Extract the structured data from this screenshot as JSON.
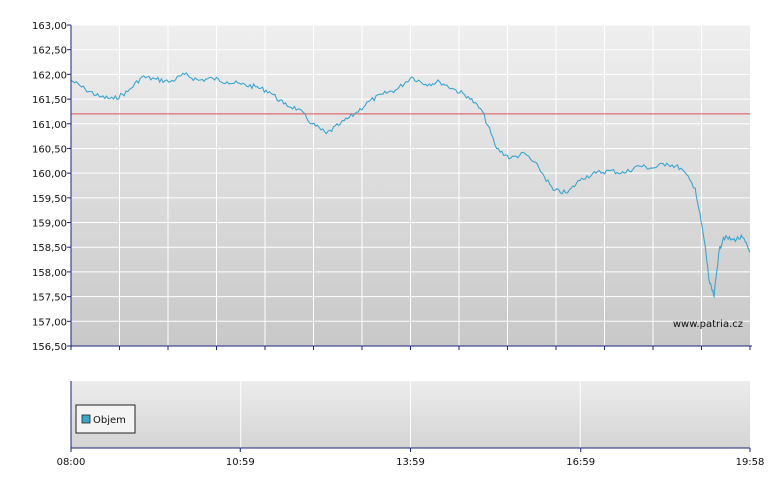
{
  "chart_data": {
    "type": "line",
    "title": "",
    "xlabel": "",
    "ylabel": "",
    "ylim": [
      156.5,
      163.0
    ],
    "y_ticks": [
      "163,00",
      "162,50",
      "162,00",
      "161,50",
      "161,00",
      "160,50",
      "160,00",
      "159,50",
      "159,00",
      "158,50",
      "158,00",
      "157,50",
      "157,00",
      "156,50"
    ],
    "x_ticks": [
      "08:00",
      "10:59",
      "13:59",
      "16:59",
      "19:58"
    ],
    "reference_line": {
      "value": 161.2,
      "color": "#e05050"
    },
    "series": [
      {
        "color": "#3aa6d0",
        "x": [
          "08:00",
          "08:15",
          "08:30",
          "08:45",
          "09:00",
          "09:15",
          "09:30",
          "09:45",
          "10:00",
          "10:15",
          "10:30",
          "10:45",
          "11:00",
          "11:15",
          "11:30",
          "11:45",
          "12:00",
          "12:15",
          "12:30",
          "12:45",
          "13:00",
          "13:15",
          "13:30",
          "13:45",
          "14:00",
          "14:15",
          "14:30",
          "14:45",
          "15:00",
          "15:15",
          "15:30",
          "15:45",
          "16:00",
          "16:15",
          "16:30",
          "16:45",
          "17:00",
          "17:15",
          "17:30",
          "17:45",
          "18:00",
          "18:15",
          "18:30",
          "18:45",
          "19:00",
          "19:10",
          "19:15",
          "19:20",
          "19:25",
          "19:30",
          "19:40",
          "19:50",
          "19:58"
        ],
        "values": [
          161.88,
          161.7,
          161.55,
          161.5,
          161.65,
          161.95,
          161.9,
          161.85,
          162.0,
          161.88,
          161.92,
          161.85,
          161.8,
          161.75,
          161.65,
          161.4,
          161.3,
          161.0,
          160.8,
          161.0,
          161.2,
          161.45,
          161.6,
          161.7,
          161.95,
          161.8,
          161.85,
          161.7,
          161.55,
          161.25,
          160.5,
          160.3,
          160.4,
          160.1,
          159.65,
          159.6,
          159.9,
          160.0,
          160.05,
          160.0,
          160.15,
          160.1,
          160.2,
          160.1,
          159.7,
          158.6,
          157.8,
          157.5,
          158.4,
          158.7,
          158.65,
          158.7,
          158.4
        ]
      }
    ],
    "volume_legend": "Objem"
  },
  "watermark": "www.patria.cz",
  "legend": {
    "label": "Objem",
    "swatch_color": "#3aa6d0"
  }
}
